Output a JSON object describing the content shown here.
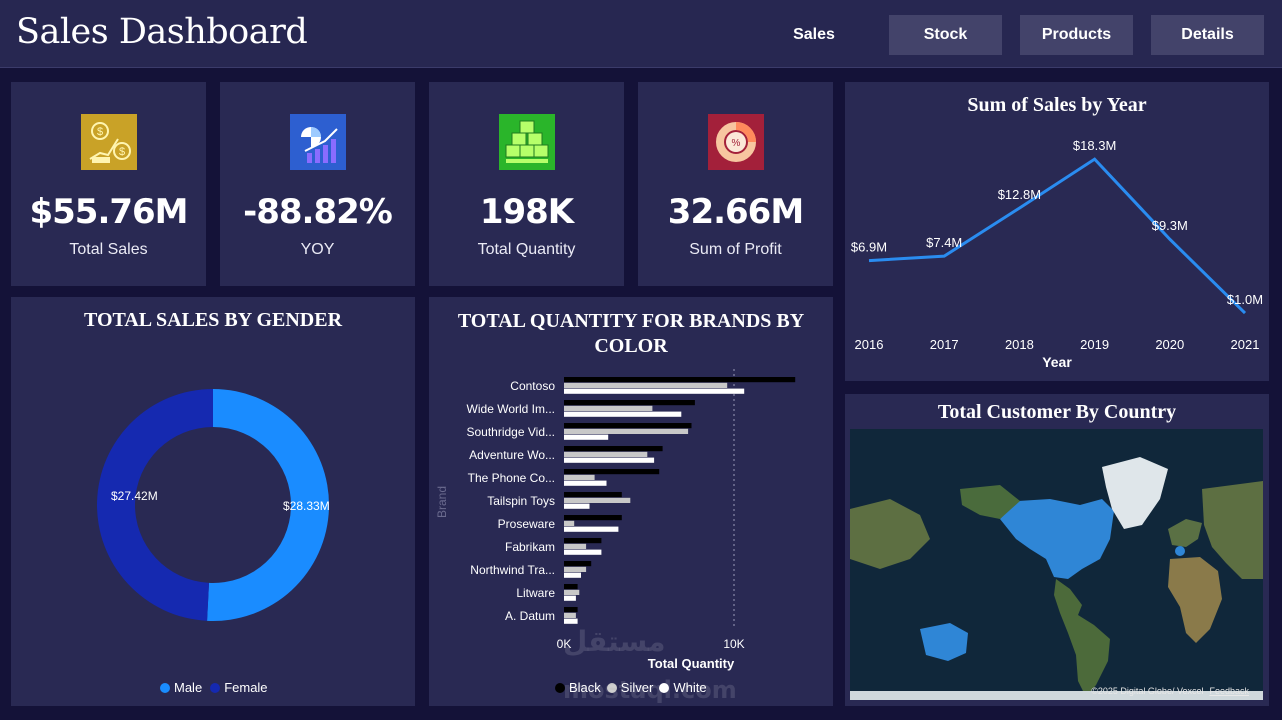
{
  "header": {
    "title": "Sales Dashboard",
    "nav": [
      "Sales",
      "Stock",
      "Products",
      "Details"
    ]
  },
  "kpis": [
    {
      "value": "$55.76M",
      "label": "Total Sales",
      "icon": "money-growth-icon",
      "color": "#c9a227"
    },
    {
      "value": "-88.82%",
      "label": "YOY",
      "icon": "bar-chart-growth-icon",
      "color": "#2d5fd0"
    },
    {
      "value": "198K",
      "label": "Total Quantity",
      "icon": "boxes-stack-icon",
      "color": "#2ab52a"
    },
    {
      "value": "32.66M",
      "label": "Sum of Profit",
      "icon": "percent-pie-icon",
      "color": "#a3203a"
    }
  ],
  "gender": {
    "title": "TOTAL SALES BY GENDER",
    "labels": {
      "male": "$28.33M",
      "female": "$27.42M"
    },
    "legend": [
      {
        "name": "Male",
        "color": "#1a8cff"
      },
      {
        "name": "Female",
        "color": "#1529b0"
      }
    ]
  },
  "brands": {
    "title_line1": "TOTAL QUANTITY FOR BRANDS BY",
    "title_line2": "COLOR",
    "ylabel": "Brand",
    "xlabel": "Total Quantity",
    "ticks": [
      "0K",
      "10K"
    ],
    "legend": [
      {
        "name": "Black",
        "color": "#000000"
      },
      {
        "name": "Silver",
        "color": "#c8c8c8"
      },
      {
        "name": "White",
        "color": "#ffffff"
      }
    ]
  },
  "sales_year": {
    "title": "Sum of Sales by Year",
    "xlabel": "Year"
  },
  "map": {
    "title": "Total Customer By Country",
    "credit": "©2025 Digital Globe/ Vexcel",
    "feedback": "Feedback"
  },
  "watermark": {
    "line1": "مستقل",
    "line2": "mostaql.com"
  },
  "chart_data": [
    {
      "type": "line",
      "title": "Sum of Sales by Year",
      "xlabel": "Year",
      "ylabel": "",
      "x": [
        "2016",
        "2017",
        "2018",
        "2019",
        "2020",
        "2021"
      ],
      "values": [
        6.9,
        7.4,
        12.8,
        18.3,
        9.3,
        1.0
      ],
      "data_labels": [
        "$6.9M",
        "$7.4M",
        "$12.8M",
        "$18.3M",
        "$9.3M",
        "$1.0M"
      ],
      "ylim": [
        0,
        20
      ],
      "color": "#2a8cf0"
    },
    {
      "type": "pie",
      "title": "TOTAL SALES BY GENDER",
      "categories": [
        "Male",
        "Female"
      ],
      "values": [
        28.33,
        27.42
      ],
      "data_labels": [
        "$28.33M",
        "$27.42M"
      ],
      "colors": [
        "#1a8cff",
        "#1529b0"
      ]
    },
    {
      "type": "bar",
      "orientation": "horizontal",
      "title": "TOTAL QUANTITY FOR BRANDS BY COLOR",
      "xlabel": "Total Quantity",
      "ylabel": "Brand",
      "categories": [
        "Contoso",
        "Wide World Im...",
        "Southridge Vid...",
        "Adventure Wo...",
        "The Phone Co...",
        "Tailspin Toys",
        "Proseware",
        "Fabrikam",
        "Northwind Tra...",
        "Litware",
        "A. Datum"
      ],
      "series": [
        {
          "name": "Black",
          "color": "#000000",
          "values": [
            13600,
            7700,
            7500,
            5800,
            5600,
            3400,
            3400,
            2200,
            1600,
            800,
            800
          ]
        },
        {
          "name": "Silver",
          "color": "#c8c8c8",
          "values": [
            9600,
            5200,
            7300,
            4900,
            1800,
            3900,
            600,
            1300,
            1300,
            900,
            700
          ]
        },
        {
          "name": "White",
          "color": "#ffffff",
          "values": [
            10600,
            6900,
            2600,
            5300,
            2500,
            1500,
            3200,
            2200,
            1000,
            700,
            800
          ]
        }
      ],
      "xlim": [
        0,
        15000
      ],
      "ticks": [
        "0K",
        "10K"
      ]
    }
  ]
}
